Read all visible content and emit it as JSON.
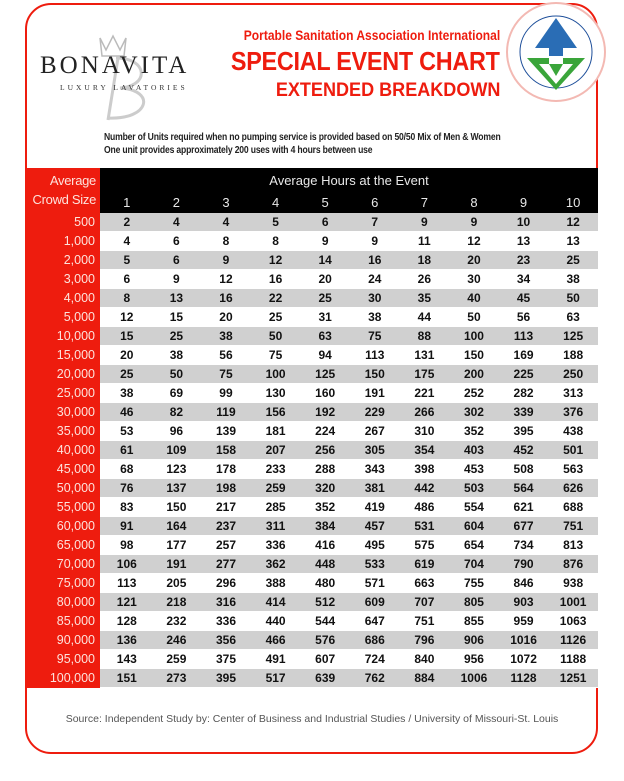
{
  "brand": {
    "name": "BONAVITA",
    "tagline": "LUXURY LAVATORIES"
  },
  "header": {
    "org": "Portable Sanitation Association International",
    "title": "SPECIAL EVENT CHART",
    "subtitle": "EXTENDED BREAKDOWN",
    "seal_text": "PORTABLE SANITATION ASSOCIATION INTERNATIONAL"
  },
  "notes": [
    "Number of Units required when no pumping service is provided  based on 50/50 Mix of Men & Women",
    "One unit provides approximately 200 uses with 4 hours between use"
  ],
  "colors": {
    "accent": "#ee1c0e",
    "header_bg": "#000000",
    "stripe": "#d0d0d0"
  },
  "chart_data": {
    "type": "table",
    "row_header": "Average Crowd Size",
    "row_header_lines": [
      "Average",
      "Crowd Size"
    ],
    "column_header": "Average Hours at the Event",
    "columns": [
      "1",
      "2",
      "3",
      "4",
      "5",
      "6",
      "7",
      "8",
      "9",
      "10"
    ],
    "rows": [
      {
        "crowd": "500",
        "values": [
          2,
          4,
          4,
          5,
          6,
          7,
          9,
          9,
          10,
          12
        ]
      },
      {
        "crowd": "1,000",
        "values": [
          4,
          6,
          8,
          8,
          9,
          9,
          11,
          12,
          13,
          13
        ]
      },
      {
        "crowd": "2,000",
        "values": [
          5,
          6,
          9,
          12,
          14,
          16,
          18,
          20,
          23,
          25
        ]
      },
      {
        "crowd": "3,000",
        "values": [
          6,
          9,
          12,
          16,
          20,
          24,
          26,
          30,
          34,
          38
        ]
      },
      {
        "crowd": "4,000",
        "values": [
          8,
          13,
          16,
          22,
          25,
          30,
          35,
          40,
          45,
          50
        ]
      },
      {
        "crowd": "5,000",
        "values": [
          12,
          15,
          20,
          25,
          31,
          38,
          44,
          50,
          56,
          63
        ]
      },
      {
        "crowd": "10,000",
        "values": [
          15,
          25,
          38,
          50,
          63,
          75,
          88,
          100,
          113,
          125
        ]
      },
      {
        "crowd": "15,000",
        "values": [
          20,
          38,
          56,
          75,
          94,
          113,
          131,
          150,
          169,
          188
        ]
      },
      {
        "crowd": "20,000",
        "values": [
          25,
          50,
          75,
          100,
          125,
          150,
          175,
          200,
          225,
          250
        ]
      },
      {
        "crowd": "25,000",
        "values": [
          38,
          69,
          99,
          130,
          160,
          191,
          221,
          252,
          282,
          313
        ]
      },
      {
        "crowd": "30,000",
        "values": [
          46,
          82,
          119,
          156,
          192,
          229,
          266,
          302,
          339,
          376
        ]
      },
      {
        "crowd": "35,000",
        "values": [
          53,
          96,
          139,
          181,
          224,
          267,
          310,
          352,
          395,
          438
        ]
      },
      {
        "crowd": "40,000",
        "values": [
          61,
          109,
          158,
          207,
          256,
          305,
          354,
          403,
          452,
          501
        ]
      },
      {
        "crowd": "45,000",
        "values": [
          68,
          123,
          178,
          233,
          288,
          343,
          398,
          453,
          508,
          563
        ]
      },
      {
        "crowd": "50,000",
        "values": [
          76,
          137,
          198,
          259,
          320,
          381,
          442,
          503,
          564,
          626
        ]
      },
      {
        "crowd": "55,000",
        "values": [
          83,
          150,
          217,
          285,
          352,
          419,
          486,
          554,
          621,
          688
        ]
      },
      {
        "crowd": "60,000",
        "values": [
          91,
          164,
          237,
          311,
          384,
          457,
          531,
          604,
          677,
          751
        ]
      },
      {
        "crowd": "65,000",
        "values": [
          98,
          177,
          257,
          336,
          416,
          495,
          575,
          654,
          734,
          813
        ]
      },
      {
        "crowd": "70,000",
        "values": [
          106,
          191,
          277,
          362,
          448,
          533,
          619,
          704,
          790,
          876
        ]
      },
      {
        "crowd": "75,000",
        "values": [
          113,
          205,
          296,
          388,
          480,
          571,
          663,
          755,
          846,
          938
        ]
      },
      {
        "crowd": "80,000",
        "values": [
          121,
          218,
          316,
          414,
          512,
          609,
          707,
          805,
          903,
          1001
        ]
      },
      {
        "crowd": "85,000",
        "values": [
          128,
          232,
          336,
          440,
          544,
          647,
          751,
          855,
          959,
          1063
        ]
      },
      {
        "crowd": "90,000",
        "values": [
          136,
          246,
          356,
          466,
          576,
          686,
          796,
          906,
          1016,
          1126
        ]
      },
      {
        "crowd": "95,000",
        "values": [
          143,
          259,
          375,
          491,
          607,
          724,
          840,
          956,
          1072,
          1188
        ]
      },
      {
        "crowd": "100,000",
        "values": [
          151,
          273,
          395,
          517,
          639,
          762,
          884,
          1006,
          1128,
          1251
        ]
      }
    ]
  },
  "footer": {
    "source": "Source:  Independent Study by:  Center of Business and Industrial Studies / University of Missouri-St. Louis"
  }
}
